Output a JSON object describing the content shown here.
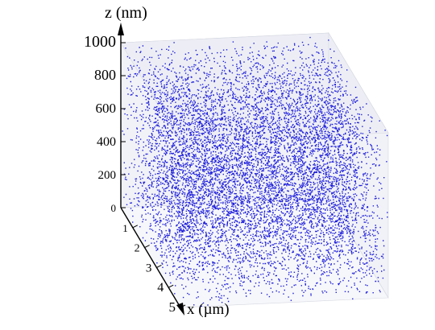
{
  "chart_data": {
    "type": "scatter",
    "dimensions": 3,
    "title": "",
    "zlabel": "z (nm)",
    "xlabel": "x (µm)",
    "zlim": [
      0,
      1000
    ],
    "xlim": [
      0,
      5
    ],
    "z_ticks": [
      "0",
      "200",
      "400",
      "600",
      "800",
      "1000"
    ],
    "x_ticks": [
      "1",
      "2",
      "3",
      "4",
      "5"
    ],
    "marker_color": "#1e1edc",
    "box_face_color": "#e6e8f0",
    "point_count_estimate": 9000,
    "distribution": "dense, approximately uniform random point cloud filling the box volume"
  }
}
